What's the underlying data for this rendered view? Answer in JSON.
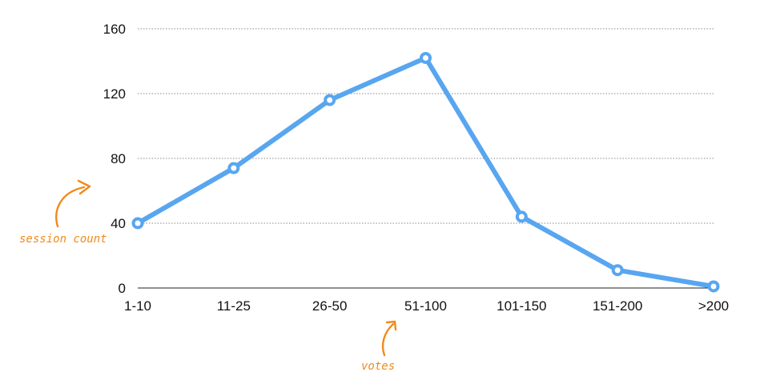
{
  "chart_data": {
    "type": "line",
    "categories": [
      "1-10",
      "11-25",
      "26-50",
      "51-100",
      "101-150",
      "151-200",
      ">200"
    ],
    "values": [
      40,
      74,
      116,
      142,
      44,
      11,
      1
    ],
    "xlabel": "votes",
    "ylabel": "session count",
    "ylim": [
      0,
      160
    ],
    "yticks": [
      0,
      40,
      80,
      120,
      160
    ],
    "grid": "horizontal dotted",
    "line_color": "#58a6f0",
    "annotation_color": "#f08a1c"
  }
}
